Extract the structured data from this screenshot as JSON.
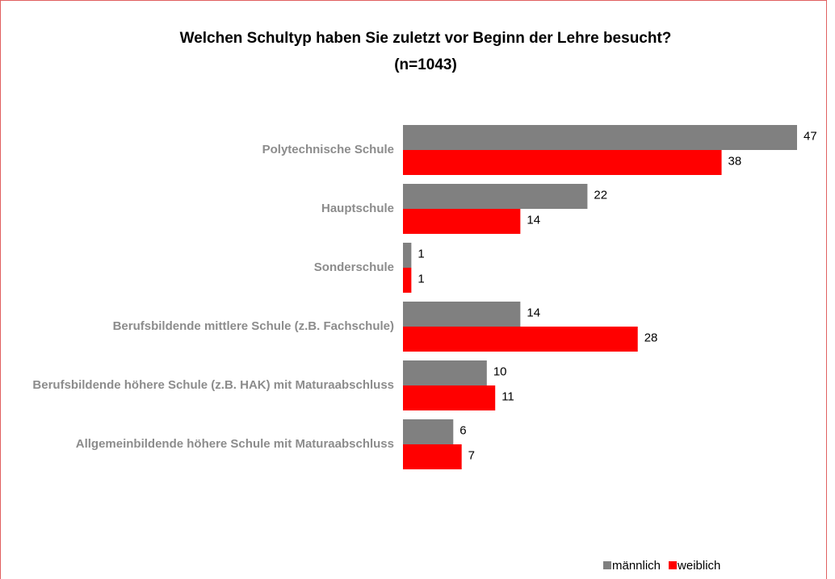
{
  "chart_data": {
    "type": "hbar",
    "title": "Welchen Schultyp haben Sie zuletzt vor Beginn der Lehre besucht?",
    "subtitle": "(n=1043)",
    "categories": [
      "Polytechnische Schule",
      "Hauptschule",
      "Sonderschule",
      "Berufsbildende mittlere Schule (z.B. Fachschule)",
      "Berufsbildende höhere Schule (z.B. HAK) mit Maturaabschluss",
      "Allgemeinbildende höhere Schule mit Maturaabschluss"
    ],
    "series": [
      {
        "name": "männlich",
        "color": "#808080",
        "values": [
          47,
          22,
          1,
          14,
          10,
          6
        ]
      },
      {
        "name": "weiblich",
        "color": "#ff0000",
        "values": [
          38,
          14,
          1,
          28,
          11,
          7
        ]
      }
    ]
  }
}
